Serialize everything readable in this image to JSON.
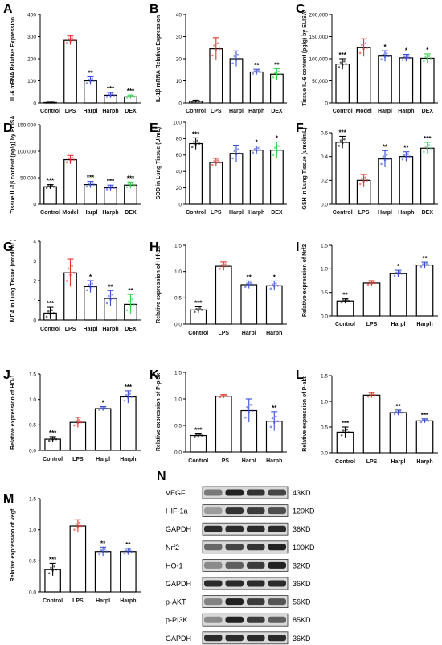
{
  "colors": {
    "red": "#e8322a",
    "blue": "#3a4fd8",
    "green": "#2fd04a",
    "black": "#000000"
  },
  "chart_data": [
    {
      "panel": "A",
      "type": "bar",
      "categories": [
        "Control",
        "LPS",
        "Harpl",
        "Harph",
        "DEX"
      ],
      "values": [
        2,
        283,
        100,
        35,
        28
      ],
      "errors": [
        1,
        20,
        18,
        12,
        8
      ],
      "sig": [
        "",
        "",
        "**",
        "***",
        "***"
      ],
      "ylabel": "IL-6 mRNA Relative Expression",
      "ylim": [
        0,
        400
      ],
      "yticks": [
        "0",
        "100",
        "200",
        "300",
        "400"
      ],
      "colors": [
        "#000000",
        "#e8322a",
        "#3a4fd8",
        "#3a4fd8",
        "#2fd04a"
      ]
    },
    {
      "panel": "B",
      "type": "bar",
      "categories": [
        "Control",
        "LPS",
        "Harpl",
        "Harph",
        "DEX"
      ],
      "values": [
        0.8,
        24.5,
        20,
        14,
        13
      ],
      "errors": [
        0.5,
        5,
        3.5,
        1.2,
        2.5
      ],
      "sig": [
        "",
        "",
        "",
        "**",
        "**"
      ],
      "ylabel": "IL-1β mRNA Relative Expression",
      "ylim": [
        0,
        40
      ],
      "yticks": [
        "0",
        "10",
        "20",
        "30",
        "40"
      ],
      "colors": [
        "#000000",
        "#e8322a",
        "#3a4fd8",
        "#3a4fd8",
        "#2fd04a"
      ]
    },
    {
      "panel": "C",
      "type": "bar",
      "categories": [
        "Control",
        "Model",
        "Harpl",
        "Harph",
        "DEX"
      ],
      "values": [
        88000,
        125000,
        106000,
        102000,
        101000
      ],
      "errors": [
        12000,
        20000,
        12000,
        8000,
        10000
      ],
      "sig": [
        "***",
        "",
        "*",
        "*",
        "*"
      ],
      "ylabel": "Tissue IL-6 content (pg/g) by ELISA",
      "ylim": [
        0,
        200000
      ],
      "yticks": [
        "0",
        "50,000",
        "100,000",
        "150,000",
        "200,000"
      ],
      "colors": [
        "#000000",
        "#e8322a",
        "#3a4fd8",
        "#3a4fd8",
        "#2fd04a"
      ]
    },
    {
      "panel": "D",
      "type": "bar",
      "categories": [
        "Control",
        "Model",
        "Harpl",
        "Harph",
        "DEX"
      ],
      "values": [
        33000,
        84000,
        37000,
        31000,
        36000
      ],
      "errors": [
        4000,
        8000,
        6000,
        5000,
        6000
      ],
      "sig": [
        "***",
        "",
        "***",
        "***",
        "***"
      ],
      "ylabel": "Tissue IL-1β content (pg/g) by ELISA",
      "ylim": [
        0,
        150000
      ],
      "yticks": [
        "0",
        "50,000",
        "100,000",
        "150,000"
      ],
      "colors": [
        "#000000",
        "#e8322a",
        "#3a4fd8",
        "#3a4fd8",
        "#2fd04a"
      ]
    },
    {
      "panel": "E",
      "type": "bar",
      "categories": [
        "Control",
        "LPS",
        "Harpl",
        "Harph",
        "DEX"
      ],
      "values": [
        74,
        51,
        62,
        66,
        66
      ],
      "errors": [
        7,
        5,
        10,
        5,
        10
      ],
      "sig": [
        "***",
        "",
        "",
        "*",
        "*"
      ],
      "ylabel": "SOD in Lung Tissue (U/mL)",
      "ylim": [
        0,
        100
      ],
      "yticks": [
        "0",
        "20",
        "40",
        "60",
        "80",
        "100"
      ],
      "colors": [
        "#000000",
        "#e8322a",
        "#3a4fd8",
        "#3a4fd8",
        "#2fd04a"
      ]
    },
    {
      "panel": "F",
      "type": "bar",
      "categories": [
        "Control",
        "LPS",
        "Harpl",
        "Harph",
        "DEX"
      ],
      "values": [
        0.52,
        0.2,
        0.38,
        0.4,
        0.47
      ],
      "errors": [
        0.05,
        0.05,
        0.07,
        0.04,
        0.05
      ],
      "sig": [
        "***",
        "",
        "**",
        "**",
        "***"
      ],
      "ylabel": "GSH in Lung Tissue (umol/mL)",
      "ylim": [
        0,
        0.6
      ],
      "yticks": [
        "0.0",
        "0.2",
        "0.4",
        "0.6"
      ],
      "colors": [
        "#000000",
        "#e8322a",
        "#3a4fd8",
        "#3a4fd8",
        "#2fd04a"
      ]
    },
    {
      "panel": "G",
      "type": "bar",
      "categories": [
        "Control",
        "LPS",
        "Harpl",
        "Harph",
        "DEX"
      ],
      "values": [
        0.35,
        2.4,
        1.7,
        1.1,
        0.8
      ],
      "errors": [
        0.3,
        0.7,
        0.3,
        0.4,
        0.5
      ],
      "sig": [
        "***",
        "",
        "*",
        "**",
        "**"
      ],
      "ylabel": "MDA in Lung Tissue (nmol/mL)",
      "ylim": [
        0,
        4
      ],
      "yticks": [
        "0",
        "1",
        "2",
        "3",
        "4"
      ],
      "colors": [
        "#000000",
        "#e8322a",
        "#3a4fd8",
        "#3a4fd8",
        "#2fd04a"
      ]
    },
    {
      "panel": "H",
      "type": "bar",
      "categories": [
        "Control",
        "LPS",
        "Harpl",
        "Harph"
      ],
      "values": [
        0.27,
        1.1,
        0.75,
        0.73
      ],
      "errors": [
        0.06,
        0.08,
        0.07,
        0.09
      ],
      "sig": [
        "***",
        "",
        "**",
        "*"
      ],
      "ylabel": "Relative expression of Hif-1a",
      "ylim": [
        0,
        1.5
      ],
      "yticks": [
        "0.0",
        "0.5",
        "1.0",
        "1.5"
      ],
      "colors": [
        "#000000",
        "#e8322a",
        "#3a4fd8",
        "#3a4fd8"
      ]
    },
    {
      "panel": "I",
      "type": "bar",
      "categories": [
        "Control",
        "LPS",
        "Harpl",
        "Harph"
      ],
      "values": [
        0.32,
        0.7,
        0.9,
        1.08
      ],
      "errors": [
        0.05,
        0.05,
        0.07,
        0.06
      ],
      "sig": [
        "**",
        "",
        "*",
        "**"
      ],
      "ylabel": "Relative expression of Nrf2",
      "ylim": [
        0,
        1.5
      ],
      "yticks": [
        "0.0",
        "0.5",
        "1.0",
        "1.5"
      ],
      "colors": [
        "#000000",
        "#e8322a",
        "#3a4fd8",
        "#3a4fd8"
      ]
    },
    {
      "panel": "J",
      "type": "bar",
      "categories": [
        "Control",
        "LPS",
        "Harpl",
        "Harph"
      ],
      "values": [
        0.22,
        0.55,
        0.82,
        1.05
      ],
      "errors": [
        0.05,
        0.1,
        0.04,
        0.12
      ],
      "sig": [
        "***",
        "",
        "*",
        "***"
      ],
      "ylabel": "Relative expression of HO-1",
      "ylim": [
        0,
        1.5
      ],
      "yticks": [
        "0.0",
        "0.5",
        "1.0",
        "1.5"
      ],
      "colors": [
        "#000000",
        "#e8322a",
        "#3a4fd8",
        "#3a4fd8"
      ]
    },
    {
      "panel": "K",
      "type": "bar",
      "categories": [
        "Control",
        "LPS",
        "Harpl",
        "Harph"
      ],
      "values": [
        0.31,
        1.05,
        0.78,
        0.58
      ],
      "errors": [
        0.03,
        0.03,
        0.22,
        0.18
      ],
      "sig": [
        "***",
        "",
        "",
        "**"
      ],
      "ylabel": "Relative expression of P-pi3k",
      "ylim": [
        0,
        1.5
      ],
      "yticks": [
        "0.0",
        "0.5",
        "1.0",
        "1.5"
      ],
      "colors": [
        "#000000",
        "#e8322a",
        "#3a4fd8",
        "#3a4fd8"
      ]
    },
    {
      "panel": "L",
      "type": "bar",
      "categories": [
        "Control",
        "LPS",
        "Harpl",
        "Harph"
      ],
      "values": [
        0.4,
        1.12,
        0.78,
        0.62
      ],
      "errors": [
        0.1,
        0.05,
        0.05,
        0.04
      ],
      "sig": [
        "***",
        "",
        "**",
        "***"
      ],
      "ylabel": "Relative expression of P-akt",
      "ylim": [
        0,
        1.5
      ],
      "yticks": [
        "0.0",
        "0.5",
        "1.0",
        "1.5"
      ],
      "colors": [
        "#000000",
        "#e8322a",
        "#3a4fd8",
        "#3a4fd8"
      ]
    },
    {
      "panel": "M",
      "type": "bar",
      "categories": [
        "Control",
        "LPS",
        "Harpl",
        "Harph"
      ],
      "values": [
        0.36,
        1.06,
        0.65,
        0.65
      ],
      "errors": [
        0.1,
        0.1,
        0.07,
        0.05
      ],
      "sig": [
        "***",
        "",
        "**",
        "**"
      ],
      "ylabel": "Relative expression of vegf",
      "ylim": [
        0,
        1.5
      ],
      "yticks": [
        "0.0",
        "0.5",
        "1.0",
        "1.5"
      ],
      "colors": [
        "#000000",
        "#e8322a",
        "#3a4fd8",
        "#3a4fd8"
      ]
    }
  ],
  "blot": {
    "panel": "N",
    "rows": [
      {
        "protein": "VEGF",
        "size": "43KD",
        "intensity": [
          0.45,
          0.95,
          0.85,
          0.75
        ]
      },
      {
        "protein": "HIF-1a",
        "size": "120KD",
        "intensity": [
          0.25,
          0.85,
          0.8,
          0.7
        ]
      },
      {
        "protein": "GAPDH",
        "size": "36KD",
        "intensity": [
          0.9,
          0.9,
          0.9,
          0.9
        ]
      },
      {
        "protein": "Nrf2",
        "size": "100KD",
        "intensity": [
          0.55,
          0.75,
          0.85,
          0.95
        ]
      },
      {
        "protein": "HO-1",
        "size": "32KD",
        "intensity": [
          0.35,
          0.6,
          0.8,
          0.95
        ]
      },
      {
        "protein": "GAPDH",
        "size": "36KD",
        "intensity": [
          0.9,
          0.9,
          0.9,
          0.9
        ]
      },
      {
        "protein": "p-AKT",
        "size": "56KD",
        "intensity": [
          0.4,
          0.95,
          0.8,
          0.65
        ]
      },
      {
        "protein": "p-PI3K",
        "size": "85KD",
        "intensity": [
          0.35,
          0.95,
          0.8,
          0.6
        ]
      },
      {
        "protein": "GAPDH",
        "size": "36KD",
        "intensity": [
          0.9,
          0.9,
          0.9,
          0.9
        ]
      }
    ]
  }
}
